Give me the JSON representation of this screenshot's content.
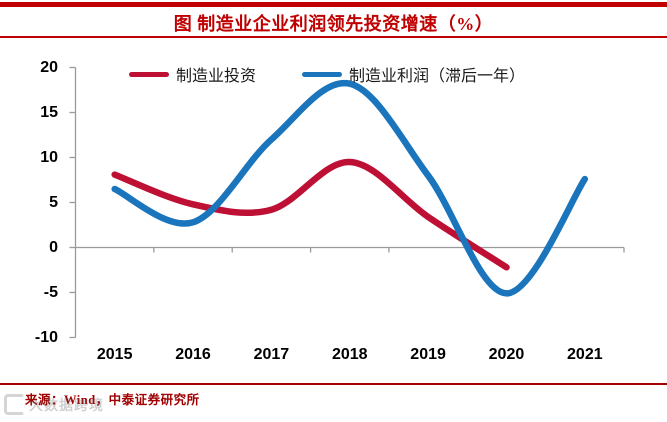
{
  "page": {
    "title": "图  制造业企业利润领先投资增速（%）",
    "source": "来源：Wind，中泰证券研究所",
    "watermark": "大数据跨境",
    "accent_color": "#c00000",
    "rule_color": "#a80000",
    "source_color": "#a00000",
    "axis_color": "#9a9a9a",
    "label_color": "#000000"
  },
  "chart_data": {
    "type": "line",
    "title": "图 制造业企业利润领先投资增速（%）",
    "xlabel": "",
    "ylabel": "",
    "x": [
      2015,
      2016,
      2017,
      2018,
      2019,
      2020,
      2021
    ],
    "xtick_labels": [
      "2015",
      "2016",
      "2017",
      "2018",
      "2019",
      "2020",
      "2021"
    ],
    "ylim": [
      -10,
      20
    ],
    "yticks": [
      20,
      15,
      10,
      5,
      0,
      -5,
      -10
    ],
    "grid": false,
    "smooth": true,
    "legend_position": "top",
    "series": [
      {
        "name": "制造业投资",
        "color": "#be0f34",
        "x": [
          2015,
          2016,
          2017,
          2018,
          2019,
          2020
        ],
        "values": [
          8.1,
          4.8,
          4.2,
          9.5,
          3.4,
          -2.2
        ]
      },
      {
        "name": "制造业利润（滞后一年）",
        "color": "#1b75bc",
        "x": [
          2015,
          2016,
          2017,
          2018,
          2019,
          2020,
          2021
        ],
        "values": [
          6.5,
          2.8,
          12.0,
          18.2,
          8.0,
          -5.1,
          7.6
        ]
      }
    ]
  }
}
